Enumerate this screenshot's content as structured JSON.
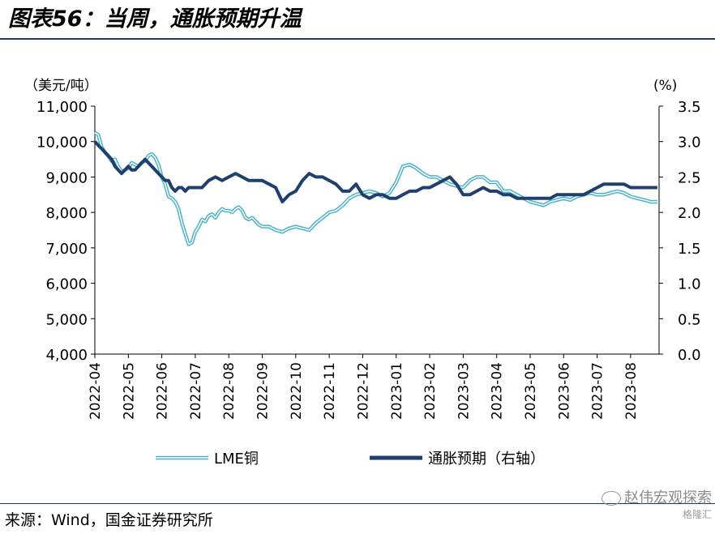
{
  "header": {
    "title": "图表56：当周，通胀预期升温"
  },
  "footer": {
    "source": "来源：Wind，国金证券研究所",
    "watermark_line1": "赵伟宏观探索",
    "watermark_line2": "格隆汇"
  },
  "chart_data": {
    "type": "line",
    "title": "",
    "left_axis_unit": "（美元/吨）",
    "right_axis_unit": "(%)",
    "left_ylim": [
      4000,
      11000
    ],
    "right_ylim": [
      0.0,
      3.5
    ],
    "left_ticks": [
      "11,000",
      "10,000",
      "9,000",
      "8,000",
      "7,000",
      "6,000",
      "5,000",
      "4,000"
    ],
    "right_ticks": [
      "3.5",
      "3.0",
      "2.5",
      "2.0",
      "1.5",
      "1.0",
      "0.5",
      "0.0"
    ],
    "x_ticks": [
      "2022-04",
      "2022-05",
      "2022-06",
      "2022-07",
      "2022-08",
      "2022-09",
      "2022-10",
      "2022-11",
      "2022-12",
      "2023-01",
      "2023-02",
      "2023-03",
      "2023-04",
      "2023-05",
      "2023-06",
      "2023-07",
      "2023-08"
    ],
    "x_range_months": [
      0,
      16.85
    ],
    "grid": false,
    "legend_position": "bottom",
    "series": [
      {
        "name": "LME铜",
        "axis": "left",
        "color": "#4bb3c8",
        "style": "double",
        "x": [
          0,
          0.1,
          0.2,
          0.3,
          0.4,
          0.5,
          0.6,
          0.7,
          0.8,
          0.9,
          1.0,
          1.1,
          1.2,
          1.3,
          1.4,
          1.5,
          1.6,
          1.7,
          1.8,
          1.9,
          2.0,
          2.1,
          2.2,
          2.3,
          2.4,
          2.5,
          2.6,
          2.7,
          2.8,
          2.9,
          3.0,
          3.1,
          3.2,
          3.3,
          3.4,
          3.5,
          3.6,
          3.7,
          3.8,
          3.9,
          4.0,
          4.1,
          4.2,
          4.3,
          4.4,
          4.5,
          4.6,
          4.7,
          4.8,
          4.9,
          5.0,
          5.2,
          5.4,
          5.6,
          5.8,
          6.0,
          6.2,
          6.4,
          6.6,
          6.8,
          7.0,
          7.2,
          7.4,
          7.6,
          7.8,
          8.0,
          8.2,
          8.4,
          8.6,
          8.8,
          9.0,
          9.2,
          9.4,
          9.6,
          9.8,
          10.0,
          10.2,
          10.4,
          10.6,
          10.8,
          11.0,
          11.2,
          11.4,
          11.6,
          11.8,
          12.0,
          12.2,
          12.4,
          12.6,
          12.8,
          13.0,
          13.2,
          13.4,
          13.6,
          13.8,
          14.0,
          14.2,
          14.4,
          14.6,
          14.8,
          15.0,
          15.2,
          15.4,
          15.6,
          15.8,
          16.0,
          16.2,
          16.4,
          16.6,
          16.8
        ],
        "values": [
          10250,
          10200,
          9850,
          9700,
          9600,
          9450,
          9500,
          9300,
          9150,
          9200,
          9250,
          9400,
          9350,
          9300,
          9400,
          9450,
          9600,
          9650,
          9550,
          9350,
          9000,
          8800,
          8450,
          8400,
          8300,
          8100,
          7700,
          7400,
          7100,
          7150,
          7450,
          7600,
          7800,
          7750,
          7900,
          7950,
          7850,
          8000,
          8100,
          8050,
          8050,
          8000,
          8100,
          8150,
          8050,
          7850,
          7800,
          7850,
          7750,
          7650,
          7600,
          7600,
          7500,
          7450,
          7550,
          7600,
          7550,
          7500,
          7700,
          7850,
          8000,
          8050,
          8200,
          8400,
          8500,
          8550,
          8600,
          8550,
          8450,
          8550,
          8850,
          9300,
          9350,
          9250,
          9100,
          9000,
          9000,
          8900,
          8800,
          8750,
          8700,
          8900,
          9000,
          9000,
          8850,
          8850,
          8600,
          8600,
          8500,
          8400,
          8300,
          8250,
          8200,
          8300,
          8350,
          8400,
          8350,
          8450,
          8500,
          8550,
          8500,
          8500,
          8550,
          8600,
          8550,
          8450,
          8400,
          8350,
          8300,
          8300
        ]
      },
      {
        "name": "通胀预期（右轴）",
        "axis": "right",
        "color": "#1f3f6e",
        "style": "thick",
        "x": [
          0,
          0.1,
          0.2,
          0.3,
          0.4,
          0.5,
          0.6,
          0.7,
          0.8,
          0.9,
          1.0,
          1.1,
          1.2,
          1.3,
          1.4,
          1.5,
          1.6,
          1.7,
          1.8,
          1.9,
          2.0,
          2.1,
          2.2,
          2.3,
          2.4,
          2.5,
          2.6,
          2.7,
          2.8,
          2.9,
          3.0,
          3.2,
          3.4,
          3.6,
          3.8,
          4.0,
          4.2,
          4.4,
          4.6,
          4.8,
          5.0,
          5.2,
          5.4,
          5.6,
          5.8,
          6.0,
          6.2,
          6.4,
          6.6,
          6.8,
          7.0,
          7.2,
          7.4,
          7.6,
          7.8,
          8.0,
          8.2,
          8.4,
          8.6,
          8.8,
          9.0,
          9.2,
          9.4,
          9.6,
          9.8,
          10.0,
          10.2,
          10.4,
          10.6,
          10.8,
          11.0,
          11.2,
          11.4,
          11.6,
          11.8,
          12.0,
          12.2,
          12.4,
          12.6,
          12.8,
          13.0,
          13.2,
          13.4,
          13.6,
          13.8,
          14.0,
          14.2,
          14.4,
          14.6,
          14.8,
          15.0,
          15.2,
          15.4,
          15.6,
          15.8,
          16.0,
          16.2,
          16.4,
          16.6,
          16.8
        ],
        "values": [
          3.0,
          2.95,
          2.9,
          2.85,
          2.8,
          2.75,
          2.65,
          2.6,
          2.55,
          2.6,
          2.65,
          2.6,
          2.6,
          2.65,
          2.7,
          2.75,
          2.7,
          2.65,
          2.6,
          2.55,
          2.5,
          2.45,
          2.45,
          2.35,
          2.3,
          2.35,
          2.35,
          2.3,
          2.35,
          2.35,
          2.35,
          2.35,
          2.45,
          2.5,
          2.45,
          2.5,
          2.55,
          2.5,
          2.45,
          2.45,
          2.45,
          2.4,
          2.35,
          2.15,
          2.25,
          2.3,
          2.45,
          2.55,
          2.5,
          2.5,
          2.45,
          2.4,
          2.3,
          2.3,
          2.4,
          2.25,
          2.2,
          2.25,
          2.25,
          2.2,
          2.2,
          2.25,
          2.3,
          2.3,
          2.35,
          2.35,
          2.4,
          2.45,
          2.5,
          2.4,
          2.25,
          2.25,
          2.3,
          2.35,
          2.3,
          2.3,
          2.25,
          2.25,
          2.2,
          2.2,
          2.2,
          2.2,
          2.2,
          2.2,
          2.25,
          2.25,
          2.25,
          2.25,
          2.25,
          2.3,
          2.35,
          2.4,
          2.4,
          2.4,
          2.4,
          2.35,
          2.35,
          2.35,
          2.35,
          2.35
        ]
      }
    ]
  }
}
